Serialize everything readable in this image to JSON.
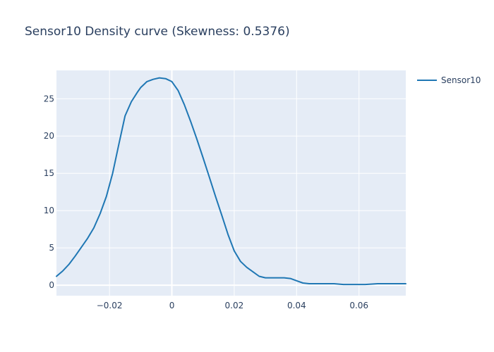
{
  "chart_data": {
    "type": "line",
    "title": "Sensor10 Density curve (Skewness: 0.5376)",
    "xlabel": "",
    "ylabel": "",
    "xlim": [
      -0.037,
      0.075
    ],
    "ylim": [
      -1.4,
      28.8
    ],
    "x_ticks": [
      -0.02,
      0,
      0.02,
      0.04,
      0.06
    ],
    "x_tick_labels": [
      "−0.02",
      "0",
      "0.02",
      "0.04",
      "0.06"
    ],
    "y_ticks": [
      0,
      5,
      10,
      15,
      20,
      25
    ],
    "y_tick_labels": [
      "0",
      "5",
      "10",
      "15",
      "20",
      "25"
    ],
    "grid": true,
    "legend_position": "top-right",
    "series": [
      {
        "name": "Sensor10",
        "color": "#1f77b4",
        "x": [
          -0.037,
          -0.035,
          -0.033,
          -0.031,
          -0.029,
          -0.027,
          -0.025,
          -0.023,
          -0.021,
          -0.019,
          -0.017,
          -0.015,
          -0.013,
          -0.011,
          -0.01,
          -0.009,
          -0.008,
          -0.006,
          -0.004,
          -0.002,
          0.0,
          0.002,
          0.004,
          0.006,
          0.008,
          0.01,
          0.012,
          0.014,
          0.016,
          0.018,
          0.02,
          0.022,
          0.024,
          0.026,
          0.028,
          0.03,
          0.032,
          0.034,
          0.036,
          0.038,
          0.04,
          0.042,
          0.044,
          0.046,
          0.048,
          0.05,
          0.052,
          0.055,
          0.058,
          0.062,
          0.066,
          0.07,
          0.074,
          0.075
        ],
        "y": [
          1.2,
          1.9,
          2.8,
          3.9,
          5.1,
          6.3,
          7.7,
          9.6,
          11.9,
          15.0,
          18.9,
          22.7,
          24.6,
          25.9,
          26.5,
          26.9,
          27.3,
          27.6,
          27.8,
          27.7,
          27.3,
          26.1,
          24.2,
          22.0,
          19.6,
          17.1,
          14.5,
          11.9,
          9.4,
          6.8,
          4.6,
          3.2,
          2.4,
          1.8,
          1.2,
          1.0,
          1.0,
          1.0,
          1.0,
          0.9,
          0.6,
          0.3,
          0.2,
          0.2,
          0.2,
          0.2,
          0.2,
          0.1,
          0.1,
          0.1,
          0.2,
          0.2,
          0.2,
          0.2
        ]
      }
    ]
  }
}
